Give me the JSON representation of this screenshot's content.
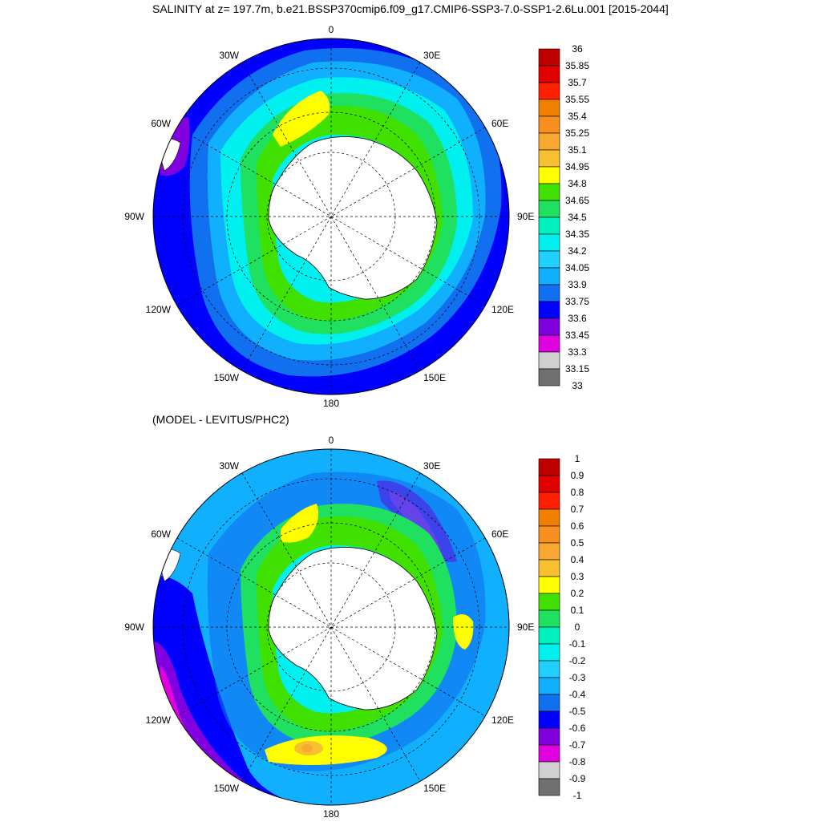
{
  "title": "SALINITY at z= 197.7m, b.e21.BSSP370cmip6.f09_g17.CMIP6-SSP3-7.0-SSP1-2.6Lu.001 [2015-2044]",
  "subtitle": "(MODEL - LEVITUS/PHC2)",
  "lon_labels": {
    "top": "0",
    "bottom": "180",
    "left": "90W",
    "right": "90E",
    "ul30": "30W",
    "ul60": "60W",
    "ur30": "30E",
    "ur60": "60E",
    "ll120": "120W",
    "ll150": "150W",
    "lr120": "120E",
    "lr150": "150E"
  },
  "colorbar_top": {
    "labels": [
      "36",
      "35.85",
      "35.7",
      "35.55",
      "35.4",
      "35.25",
      "35.1",
      "34.95",
      "34.8",
      "34.65",
      "34.5",
      "34.35",
      "34.2",
      "34.05",
      "33.9",
      "33.75",
      "33.6",
      "33.45",
      "33.3",
      "33.15",
      "33"
    ],
    "colors": [
      "#c00000",
      "#e00000",
      "#ff2000",
      "#f08000",
      "#f89020",
      "#f8a830",
      "#f8c030",
      "#ffff00",
      "#40e000",
      "#20e060",
      "#00f0c0",
      "#00f0f0",
      "#20d0ff",
      "#10b0ff",
      "#1070f0",
      "#0000ff",
      "#8000e0",
      "#e000e0",
      "#d0d0d0",
      "#707070"
    ]
  },
  "colorbar_bottom": {
    "labels": [
      "1",
      "0.9",
      "0.8",
      "0.7",
      "0.6",
      "0.5",
      "0.4",
      "0.3",
      "0.2",
      "0.1",
      "0",
      "-0.1",
      "-0.2",
      "-0.3",
      "-0.4",
      "-0.5",
      "-0.6",
      "-0.7",
      "-0.8",
      "-0.9",
      "-1"
    ],
    "colors": [
      "#c00000",
      "#e00000",
      "#ff2000",
      "#f08000",
      "#f89020",
      "#f8a830",
      "#f8c030",
      "#ffff00",
      "#40e000",
      "#20e060",
      "#00f0c0",
      "#00f0f0",
      "#20d0ff",
      "#10b0ff",
      "#1070f0",
      "#0000ff",
      "#8000e0",
      "#e000e0",
      "#d0d0d0",
      "#707070"
    ]
  }
}
